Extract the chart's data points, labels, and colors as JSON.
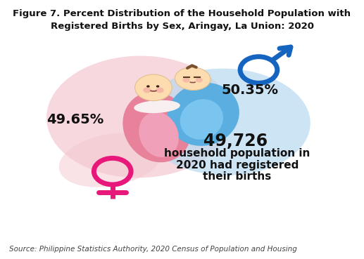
{
  "title_line1": "Figure 7. Percent Distribution of the Household Population with",
  "title_line2": "Registered Births by Sex, Aringay, La Union: 2020",
  "female_pct": "49.65%",
  "male_pct": "50.35%",
  "population": "49,726",
  "pop_label_line1": "household population in",
  "pop_label_line2": "2020 had registered",
  "pop_label_line3": "their births",
  "source": "Source: Philippine Statistics Authority, 2020 Census of Population and Housing",
  "bg_color": "#ffffff",
  "female_blob_color": "#f5c8d0",
  "male_blob_color": "#b8d9f0",
  "female_symbol_color": "#e8187a",
  "male_symbol_color": "#1565c0",
  "text_color": "#111111",
  "title_fontsize": 9.5,
  "label_fontsize": 14,
  "pop_num_fontsize": 17,
  "pop_text_fontsize": 11,
  "source_fontsize": 7.5,
  "girl_swaddle_color": "#e8829a",
  "boy_swaddle_color": "#5aaee0",
  "skin_color": "#fddcb0",
  "hair_color": "#7a5230",
  "cheek_color": "#f0a0a0"
}
